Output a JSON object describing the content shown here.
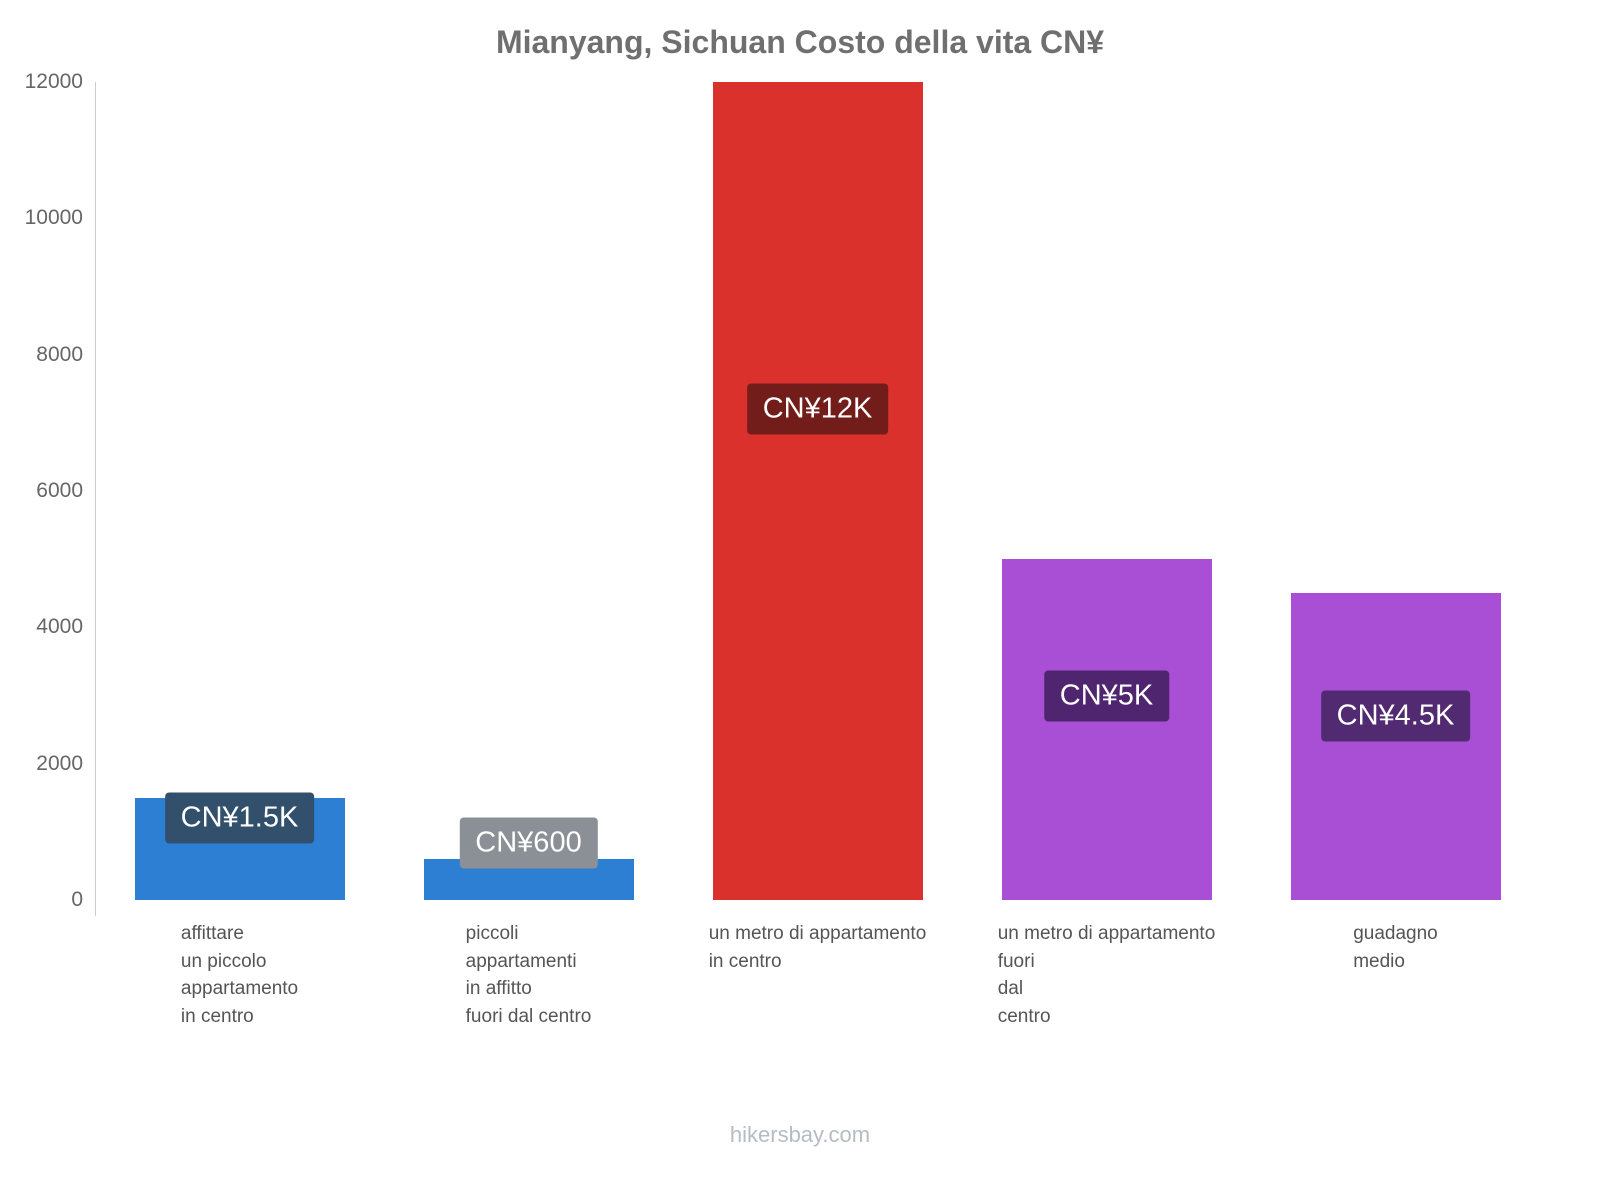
{
  "title": "Mianyang, Sichuan Costo della vita CN¥",
  "footer": "hikersbay.com",
  "chart_data": {
    "type": "bar",
    "title": "Mianyang, Sichuan Costo della vita CN¥",
    "categories": [
      "affittare\nun piccolo\nappartamento\nin centro",
      "piccoli\nappartamenti\nin affitto\nfuori dal centro",
      "un metro di appartamento\nin centro",
      "un metro di appartamento\nfuori\ndal\ncentro",
      "guadagno\nmedio"
    ],
    "values": [
      1500,
      600,
      12000,
      5000,
      4500
    ],
    "value_labels": [
      "CN¥1.5K",
      "CN¥600",
      "CN¥12K",
      "CN¥5K",
      "CN¥4.5K"
    ],
    "bar_colors": [
      "#2d7fd4",
      "#2d7fd4",
      "#da312d",
      "#a84fd6",
      "#a84fd6"
    ],
    "value_label_bg": [
      "#32506b",
      "#8a9095",
      "#731d1a",
      "#4f2570",
      "#522a72"
    ],
    "xlabel": "",
    "ylabel": "",
    "ylim": [
      0,
      12000
    ],
    "yticks": [
      0,
      2000,
      4000,
      6000,
      8000,
      10000,
      12000
    ],
    "grid": false,
    "legend": false,
    "currency": "CN¥"
  }
}
